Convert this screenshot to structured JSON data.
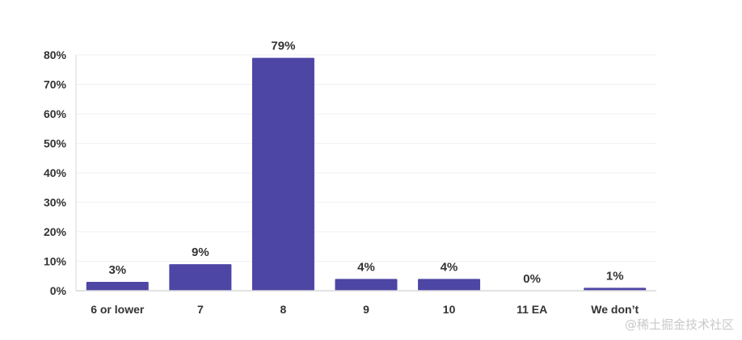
{
  "chart_data": {
    "type": "bar",
    "categories": [
      "6 or lower",
      "7",
      "8",
      "9",
      "10",
      "11 EA",
      "We don’t"
    ],
    "values": [
      3,
      9,
      79,
      4,
      4,
      0,
      1
    ],
    "value_labels": [
      "3%",
      "9%",
      "79%",
      "4%",
      "4%",
      "0%",
      "1%"
    ],
    "ylim": [
      0,
      80
    ],
    "yticks": [
      0,
      10,
      20,
      30,
      40,
      50,
      60,
      70,
      80
    ],
    "ytick_labels": [
      "0%",
      "10%",
      "20%",
      "30%",
      "40%",
      "50%",
      "60%",
      "70%",
      "80%"
    ],
    "grid": true,
    "colors": {
      "bar": "#4e46a5",
      "text": "#333333",
      "axis": "#d9d9d9",
      "grid": "#f1f1f1"
    }
  },
  "watermark": "@稀土掘金技术社区"
}
